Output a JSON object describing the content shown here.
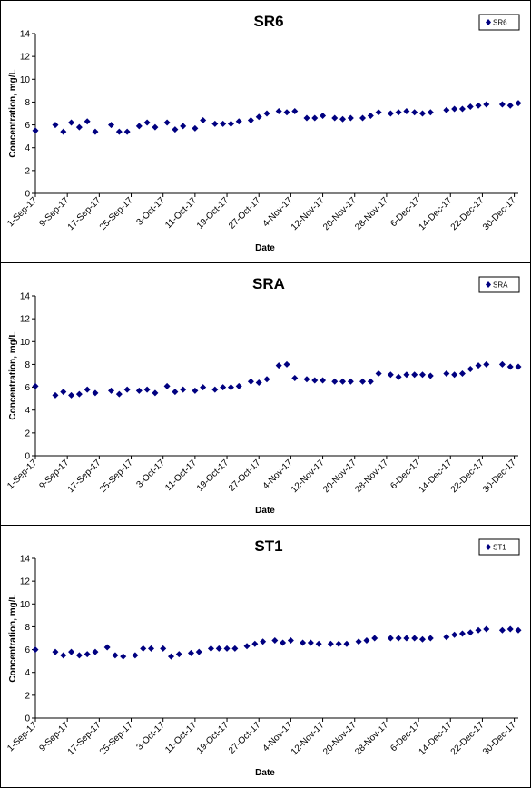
{
  "chart_data": [
    {
      "type": "scatter",
      "title": "SR6",
      "xlabel": "Date",
      "ylabel": "Concentration, mg/L",
      "ylim": [
        0,
        14
      ],
      "yticks": [
        "0",
        "2",
        "4",
        "6",
        "8",
        "10",
        "12",
        "14"
      ],
      "xlim": [
        "2017-09-01",
        "2017-12-31"
      ],
      "xticks": [
        "1-Sep-17",
        "9-Sep-17",
        "17-Sep-17",
        "25-Sep-17",
        "3-Oct-17",
        "11-Oct-17",
        "19-Oct-17",
        "27-Oct-17",
        "4-Nov-17",
        "12-Nov-17",
        "20-Nov-17",
        "28-Nov-17",
        "6-Dec-17",
        "14-Dec-17",
        "22-Dec-17",
        "30-Dec-17"
      ],
      "grid": false,
      "legend_position": "top-right",
      "marker_color": "#000080",
      "series": [
        {
          "name": "SR6",
          "x": [
            "2017-09-01",
            "2017-09-06",
            "2017-09-08",
            "2017-09-10",
            "2017-09-12",
            "2017-09-14",
            "2017-09-16",
            "2017-09-20",
            "2017-09-22",
            "2017-09-24",
            "2017-09-27",
            "2017-09-29",
            "2017-10-01",
            "2017-10-04",
            "2017-10-06",
            "2017-10-08",
            "2017-10-11",
            "2017-10-13",
            "2017-10-16",
            "2017-10-18",
            "2017-10-20",
            "2017-10-22",
            "2017-10-25",
            "2017-10-27",
            "2017-10-29",
            "2017-11-01",
            "2017-11-03",
            "2017-11-05",
            "2017-11-08",
            "2017-11-10",
            "2017-11-12",
            "2017-11-15",
            "2017-11-17",
            "2017-11-19",
            "2017-11-22",
            "2017-11-24",
            "2017-11-26",
            "2017-11-29",
            "2017-12-01",
            "2017-12-03",
            "2017-12-05",
            "2017-12-07",
            "2017-12-09",
            "2017-12-13",
            "2017-12-15",
            "2017-12-17",
            "2017-12-19",
            "2017-12-21",
            "2017-12-23",
            "2017-12-27",
            "2017-12-29",
            "2017-12-31"
          ],
          "values": [
            5.5,
            6.0,
            5.4,
            6.2,
            5.8,
            6.3,
            5.4,
            6.0,
            5.4,
            5.4,
            5.9,
            6.2,
            5.8,
            6.2,
            5.6,
            5.9,
            5.7,
            6.4,
            6.1,
            6.1,
            6.1,
            6.3,
            6.4,
            6.7,
            7.0,
            7.2,
            7.1,
            7.2,
            6.6,
            6.6,
            6.8,
            6.6,
            6.5,
            6.6,
            6.6,
            6.8,
            7.1,
            7.0,
            7.1,
            7.2,
            7.1,
            7.0,
            7.1,
            7.3,
            7.4,
            7.4,
            7.6,
            7.7,
            7.8,
            7.8,
            7.7,
            7.9
          ]
        }
      ]
    },
    {
      "type": "scatter",
      "title": "SRA",
      "xlabel": "Date",
      "ylabel": "Concentration, mg/L",
      "ylim": [
        0,
        14
      ],
      "yticks": [
        "0",
        "2",
        "4",
        "6",
        "8",
        "10",
        "12",
        "14"
      ],
      "xlim": [
        "2017-09-01",
        "2017-12-31"
      ],
      "xticks": [
        "1-Sep-17",
        "9-Sep-17",
        "17-Sep-17",
        "25-Sep-17",
        "3-Oct-17",
        "11-Oct-17",
        "19-Oct-17",
        "27-Oct-17",
        "4-Nov-17",
        "12-Nov-17",
        "20-Nov-17",
        "28-Nov-17",
        "6-Dec-17",
        "14-Dec-17",
        "22-Dec-17",
        "30-Dec-17"
      ],
      "grid": false,
      "legend_position": "top-right",
      "marker_color": "#000080",
      "series": [
        {
          "name": "SRA",
          "x": [
            "2017-09-01",
            "2017-09-06",
            "2017-09-08",
            "2017-09-10",
            "2017-09-12",
            "2017-09-14",
            "2017-09-16",
            "2017-09-20",
            "2017-09-22",
            "2017-09-24",
            "2017-09-27",
            "2017-09-29",
            "2017-10-01",
            "2017-10-04",
            "2017-10-06",
            "2017-10-08",
            "2017-10-11",
            "2017-10-13",
            "2017-10-16",
            "2017-10-18",
            "2017-10-20",
            "2017-10-22",
            "2017-10-25",
            "2017-10-27",
            "2017-10-29",
            "2017-11-01",
            "2017-11-03",
            "2017-11-05",
            "2017-11-08",
            "2017-11-10",
            "2017-11-12",
            "2017-11-15",
            "2017-11-17",
            "2017-11-19",
            "2017-11-22",
            "2017-11-24",
            "2017-11-26",
            "2017-11-29",
            "2017-12-01",
            "2017-12-03",
            "2017-12-05",
            "2017-12-07",
            "2017-12-09",
            "2017-12-13",
            "2017-12-15",
            "2017-12-17",
            "2017-12-19",
            "2017-12-21",
            "2017-12-23",
            "2017-12-27",
            "2017-12-29",
            "2017-12-31"
          ],
          "values": [
            6.1,
            5.3,
            5.6,
            5.3,
            5.4,
            5.8,
            5.5,
            5.7,
            5.4,
            5.8,
            5.7,
            5.8,
            5.5,
            6.1,
            5.6,
            5.8,
            5.7,
            6.0,
            5.8,
            6.0,
            6.0,
            6.1,
            6.5,
            6.4,
            6.7,
            7.9,
            8.0,
            6.8,
            6.7,
            6.6,
            6.6,
            6.5,
            6.5,
            6.5,
            6.5,
            6.5,
            7.2,
            7.1,
            6.9,
            7.1,
            7.1,
            7.1,
            7.0,
            7.2,
            7.1,
            7.2,
            7.6,
            7.9,
            8.0,
            8.0,
            7.8,
            7.8
          ]
        }
      ]
    },
    {
      "type": "scatter",
      "title": "ST1",
      "xlabel": "Date",
      "ylabel": "Concentration, mg/L",
      "ylim": [
        0,
        14
      ],
      "yticks": [
        "0",
        "2",
        "4",
        "6",
        "8",
        "10",
        "12",
        "14"
      ],
      "xlim": [
        "2017-09-01",
        "2017-12-31"
      ],
      "xticks": [
        "1-Sep-17",
        "9-Sep-17",
        "17-Sep-17",
        "25-Sep-17",
        "3-Oct-17",
        "11-Oct-17",
        "19-Oct-17",
        "27-Oct-17",
        "4-Nov-17",
        "12-Nov-17",
        "20-Nov-17",
        "28-Nov-17",
        "6-Dec-17",
        "14-Dec-17",
        "22-Dec-17",
        "30-Dec-17"
      ],
      "grid": false,
      "legend_position": "top-right",
      "marker_color": "#000080",
      "series": [
        {
          "name": "ST1",
          "x": [
            "2017-09-01",
            "2017-09-06",
            "2017-09-08",
            "2017-09-10",
            "2017-09-12",
            "2017-09-14",
            "2017-09-16",
            "2017-09-19",
            "2017-09-21",
            "2017-09-23",
            "2017-09-26",
            "2017-09-28",
            "2017-09-30",
            "2017-10-03",
            "2017-10-05",
            "2017-10-07",
            "2017-10-10",
            "2017-10-12",
            "2017-10-15",
            "2017-10-17",
            "2017-10-19",
            "2017-10-21",
            "2017-10-24",
            "2017-10-26",
            "2017-10-28",
            "2017-10-31",
            "2017-11-02",
            "2017-11-04",
            "2017-11-07",
            "2017-11-09",
            "2017-11-11",
            "2017-11-14",
            "2017-11-16",
            "2017-11-18",
            "2017-11-21",
            "2017-11-23",
            "2017-11-25",
            "2017-11-29",
            "2017-12-01",
            "2017-12-03",
            "2017-12-05",
            "2017-12-07",
            "2017-12-09",
            "2017-12-13",
            "2017-12-15",
            "2017-12-17",
            "2017-12-19",
            "2017-12-21",
            "2017-12-23",
            "2017-12-27",
            "2017-12-29",
            "2017-12-31"
          ],
          "values": [
            6.0,
            5.8,
            5.5,
            5.8,
            5.5,
            5.6,
            5.8,
            6.2,
            5.5,
            5.4,
            5.5,
            6.1,
            6.1,
            6.1,
            5.4,
            5.6,
            5.7,
            5.8,
            6.1,
            6.1,
            6.1,
            6.1,
            6.3,
            6.5,
            6.7,
            6.8,
            6.6,
            6.8,
            6.6,
            6.6,
            6.5,
            6.5,
            6.5,
            6.5,
            6.7,
            6.8,
            7.0,
            7.0,
            7.0,
            7.0,
            7.0,
            6.9,
            7.0,
            7.1,
            7.3,
            7.4,
            7.5,
            7.7,
            7.8,
            7.7,
            7.8,
            7.7
          ]
        }
      ]
    }
  ]
}
